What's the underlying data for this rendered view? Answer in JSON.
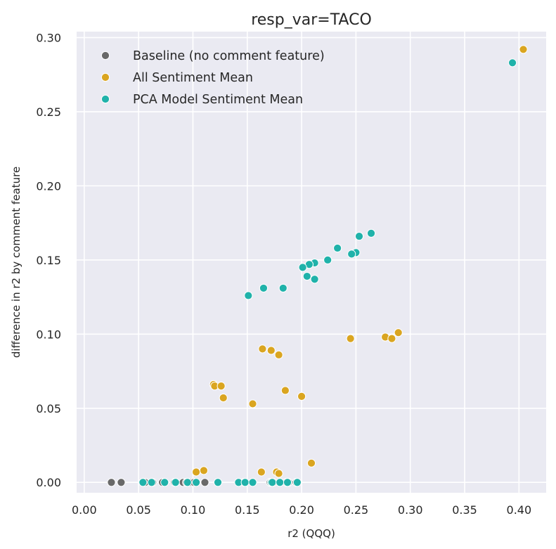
{
  "chart_data": {
    "type": "scatter",
    "title": "resp_var=TACO",
    "xlabel": "r2 (QQQ)",
    "ylabel": "difference in r2 by comment feature",
    "xlim": [
      -0.007,
      0.425
    ],
    "ylim": [
      -0.007,
      0.304
    ],
    "xticks": [
      0.0,
      0.05,
      0.1,
      0.15,
      0.2,
      0.25,
      0.3,
      0.35,
      0.4
    ],
    "xtick_labels": [
      "0.00",
      "0.05",
      "0.10",
      "0.15",
      "0.20",
      "0.25",
      "0.30",
      "0.35",
      "0.40"
    ],
    "yticks": [
      0.0,
      0.05,
      0.1,
      0.15,
      0.2,
      0.25,
      0.3
    ],
    "ytick_labels": [
      "0.00",
      "0.05",
      "0.10",
      "0.15",
      "0.20",
      "0.25",
      "0.30"
    ],
    "grid": true,
    "legend_position": "top-left",
    "background_color": "#eaeaf2",
    "series": [
      {
        "name": "Baseline (no comment feature)",
        "color": "#696969",
        "points": [
          [
            0.025,
            0
          ],
          [
            0.034,
            0
          ],
          [
            0.054,
            0
          ],
          [
            0.056,
            0
          ],
          [
            0.063,
            0
          ],
          [
            0.072,
            0
          ],
          [
            0.083,
            0
          ],
          [
            0.091,
            0
          ],
          [
            0.094,
            0
          ],
          [
            0.097,
            0
          ],
          [
            0.101,
            0
          ],
          [
            0.111,
            0
          ],
          [
            0.123,
            0
          ],
          [
            0.147,
            0
          ],
          [
            0.155,
            0
          ],
          [
            0.171,
            0
          ],
          [
            0.174,
            0
          ],
          [
            0.18,
            0
          ],
          [
            0.186,
            0
          ],
          [
            0.188,
            0
          ],
          [
            0.195,
            0
          ]
        ]
      },
      {
        "name": "All Sentiment Mean",
        "color": "#daa520",
        "points": [
          [
            0.404,
            0.292
          ],
          [
            0.289,
            0.101
          ],
          [
            0.277,
            0.098
          ],
          [
            0.283,
            0.097
          ],
          [
            0.245,
            0.097
          ],
          [
            0.164,
            0.09
          ],
          [
            0.172,
            0.089
          ],
          [
            0.179,
            0.086
          ],
          [
            0.119,
            0.066
          ],
          [
            0.12,
            0.065
          ],
          [
            0.126,
            0.065
          ],
          [
            0.185,
            0.062
          ],
          [
            0.128,
            0.057
          ],
          [
            0.2,
            0.058
          ],
          [
            0.155,
            0.053
          ],
          [
            0.209,
            0.013
          ],
          [
            0.11,
            0.008
          ],
          [
            0.103,
            0.007
          ],
          [
            0.163,
            0.007
          ],
          [
            0.177,
            0.007
          ],
          [
            0.179,
            0.006
          ]
        ]
      },
      {
        "name": "PCA Model Sentiment Mean",
        "color": "#20b2aa",
        "points": [
          [
            0.394,
            0.283
          ],
          [
            0.264,
            0.168
          ],
          [
            0.253,
            0.166
          ],
          [
            0.233,
            0.158
          ],
          [
            0.25,
            0.155
          ],
          [
            0.246,
            0.154
          ],
          [
            0.224,
            0.15
          ],
          [
            0.212,
            0.148
          ],
          [
            0.207,
            0.147
          ],
          [
            0.201,
            0.145
          ],
          [
            0.205,
            0.139
          ],
          [
            0.212,
            0.137
          ],
          [
            0.165,
            0.131
          ],
          [
            0.183,
            0.131
          ],
          [
            0.151,
            0.126
          ],
          [
            0.054,
            0
          ],
          [
            0.062,
            0
          ],
          [
            0.074,
            0
          ],
          [
            0.084,
            0
          ],
          [
            0.095,
            0
          ],
          [
            0.103,
            0
          ],
          [
            0.123,
            0
          ],
          [
            0.142,
            0
          ],
          [
            0.148,
            0
          ],
          [
            0.155,
            0
          ],
          [
            0.172,
            0
          ],
          [
            0.173,
            0
          ],
          [
            0.18,
            0
          ],
          [
            0.187,
            0
          ],
          [
            0.196,
            0
          ]
        ]
      }
    ]
  }
}
